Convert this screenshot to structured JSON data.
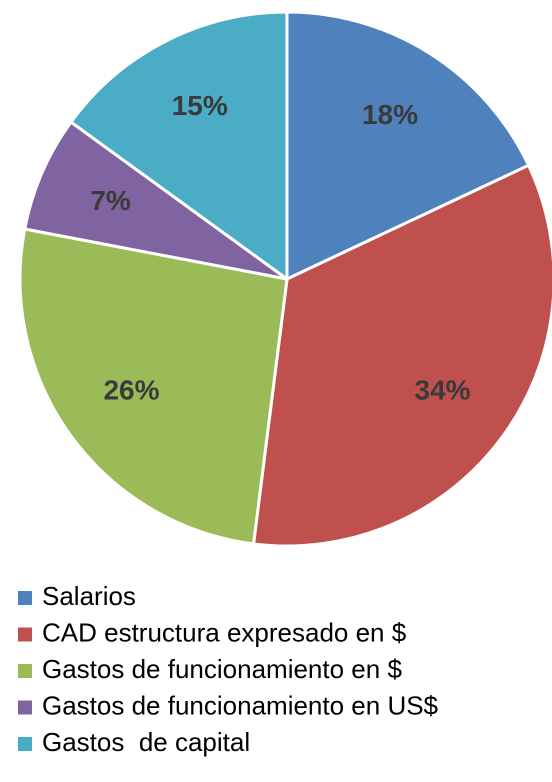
{
  "chart_data": {
    "type": "pie",
    "categories": [
      "Salarios",
      "CAD estructura expresado en $",
      "Gastos de funcionamiento en $",
      "Gastos de funcionamiento en US$",
      "Gastos  de capital"
    ],
    "values": [
      18,
      34,
      26,
      7,
      15
    ],
    "value_labels": [
      "18%",
      "34%",
      "26%",
      "7%",
      "15%"
    ],
    "colors": [
      "#4f81bd",
      "#c0504d",
      "#9bbb59",
      "#8064a2",
      "#4bacc6"
    ],
    "legend": "bottom"
  }
}
